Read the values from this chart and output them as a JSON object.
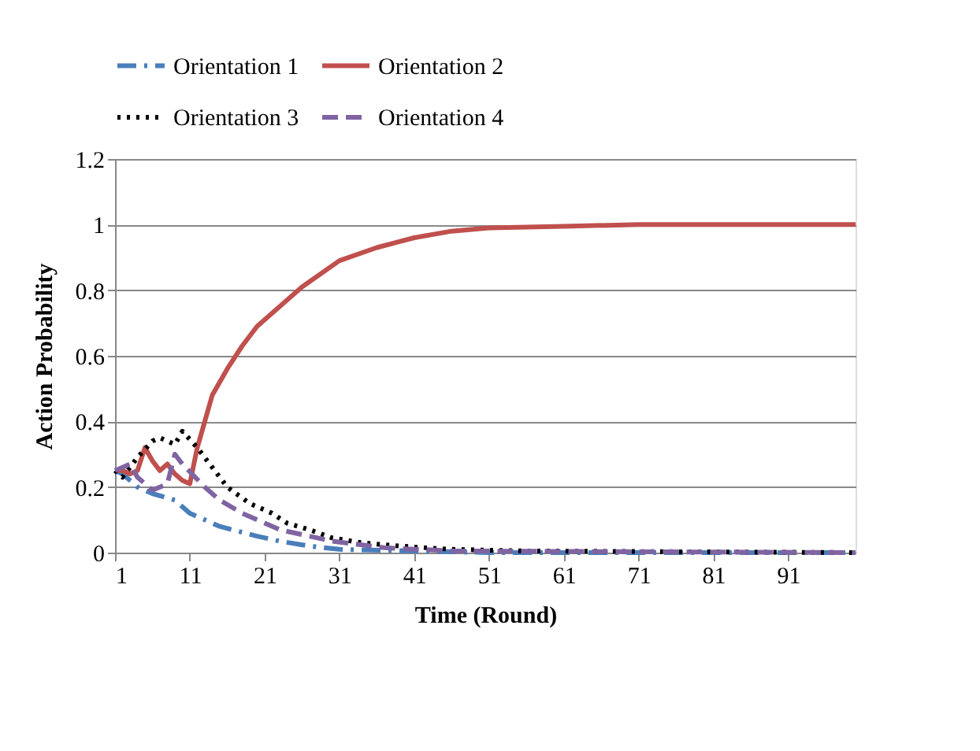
{
  "chart_data": {
    "type": "line",
    "xlabel": "Time (Round)",
    "ylabel": "Action Probability",
    "xlim": [
      1,
      100
    ],
    "xticks": [
      1,
      11,
      21,
      31,
      41,
      51,
      61,
      71,
      81,
      91
    ],
    "ylim": [
      0,
      1.2
    ],
    "yticks": [
      0,
      0.2,
      0.4,
      0.6,
      0.8,
      1,
      1.2
    ],
    "grid": "y",
    "legend": "top",
    "marker": "none",
    "series": [
      {
        "name": "Orientation 1",
        "color": "#4a7ebb",
        "line_style": "dashdot",
        "x": [
          1,
          2,
          3,
          4,
          5,
          6,
          9,
          11,
          15,
          20,
          23,
          27,
          31,
          41,
          51,
          100
        ],
        "values": [
          0.25,
          0.24,
          0.22,
          0.2,
          0.19,
          0.18,
          0.16,
          0.12,
          0.08,
          0.05,
          0.035,
          0.02,
          0.01,
          0.005,
          0,
          0
        ]
      },
      {
        "name": "Orientation 2",
        "color": "#c0504d",
        "line_style": "solid",
        "x": [
          1,
          2,
          3,
          4,
          5,
          6,
          7,
          8,
          9,
          10,
          11,
          12,
          13,
          14,
          16,
          18,
          20,
          23,
          26,
          31,
          36,
          41,
          46,
          51,
          61,
          71,
          100
        ],
        "values": [
          0.25,
          0.25,
          0.24,
          0.25,
          0.32,
          0.28,
          0.25,
          0.27,
          0.24,
          0.22,
          0.21,
          0.32,
          0.4,
          0.48,
          0.56,
          0.63,
          0.69,
          0.75,
          0.81,
          0.89,
          0.93,
          0.96,
          0.98,
          0.99,
          0.995,
          1,
          1
        ]
      },
      {
        "name": "Orientation 3",
        "color": "#000000",
        "line_style": "dotted",
        "x": [
          1,
          2,
          3,
          4,
          6,
          7,
          9,
          10,
          12,
          13,
          15,
          16,
          19,
          22,
          24,
          27,
          30,
          34,
          39,
          46,
          56,
          100
        ],
        "values": [
          0.25,
          0.23,
          0.26,
          0.29,
          0.34,
          0.35,
          0.33,
          0.37,
          0.32,
          0.29,
          0.23,
          0.2,
          0.15,
          0.12,
          0.09,
          0.07,
          0.045,
          0.03,
          0.02,
          0.01,
          0.005,
          0
        ]
      },
      {
        "name": "Orientation 4",
        "color": "#8064a2",
        "line_style": "dashed",
        "x": [
          1,
          2,
          3,
          4,
          6,
          8,
          9,
          10,
          13,
          15,
          18,
          20,
          23,
          30,
          37,
          46,
          100
        ],
        "values": [
          0.25,
          0.26,
          0.27,
          0.23,
          0.19,
          0.21,
          0.3,
          0.27,
          0.2,
          0.16,
          0.12,
          0.1,
          0.07,
          0.035,
          0.015,
          0.005,
          0
        ]
      }
    ]
  }
}
